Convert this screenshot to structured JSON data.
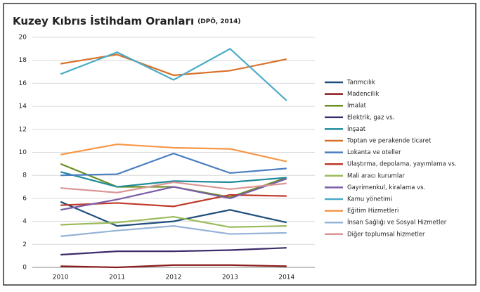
{
  "chart_data": {
    "type": "line",
    "title": "Kuzey Kıbrıs İstihdam Oranları",
    "subtitle": "(DPÖ, 2014)",
    "categories": [
      "2010",
      "2011",
      "2012",
      "2013",
      "2014"
    ],
    "ylim": [
      0,
      20
    ],
    "yticks": [
      0,
      2,
      4,
      6,
      8,
      10,
      12,
      14,
      16,
      18,
      20
    ],
    "grid": true,
    "legend": "right",
    "series": [
      {
        "name": "Tarımcılık",
        "color": "#1f4e79",
        "values": [
          5.7,
          3.6,
          4.0,
          5.0,
          3.9
        ]
      },
      {
        "name": "Madencilik",
        "color": "#8b1a1a",
        "values": [
          0.1,
          0.0,
          0.2,
          0.2,
          0.1
        ]
      },
      {
        "name": "İmalat",
        "color": "#6b8e23",
        "values": [
          9.0,
          7.0,
          7.0,
          6.1,
          7.8
        ]
      },
      {
        "name": "Elektrik, gaz vs.",
        "color": "#3d2b6b",
        "values": [
          1.1,
          1.4,
          1.4,
          1.5,
          1.7
        ]
      },
      {
        "name": "İnşaat",
        "color": "#1f8a9b",
        "values": [
          8.3,
          7.0,
          7.5,
          7.4,
          7.8
        ]
      },
      {
        "name": "Toptan ve perakende ticaret",
        "color": "#d9702a",
        "values": [
          17.7,
          18.5,
          16.7,
          17.1,
          18.1
        ]
      },
      {
        "name": "Lokanta ve oteller",
        "color": "#4a7ec2",
        "values": [
          8.0,
          8.1,
          9.9,
          8.2,
          8.6
        ]
      },
      {
        "name": "Ulaştırma,  depolama,  yayımlama  vs.",
        "color": "#c0392b",
        "values": [
          5.4,
          5.6,
          5.3,
          6.3,
          6.2
        ]
      },
      {
        "name": "Mali aracı kurumlar",
        "color": "#9bbb59",
        "values": [
          3.7,
          3.9,
          4.4,
          3.5,
          3.6
        ]
      },
      {
        "name": "Gayrimenkul, kiralama vs.",
        "color": "#7b5ea7",
        "values": [
          5.0,
          5.9,
          7.0,
          6.0,
          7.7
        ]
      },
      {
        "name": "Kamu yönetimi",
        "color": "#4bacc6",
        "values": [
          16.8,
          18.7,
          16.3,
          19.0,
          14.5
        ]
      },
      {
        "name": "Eğitim Hizmetleri",
        "color": "#f79646",
        "values": [
          9.8,
          10.7,
          10.4,
          10.3,
          9.2
        ]
      },
      {
        "name": "İnsan Sağlığı ve Sosyal Hizmetler",
        "color": "#95b3d7",
        "values": [
          2.7,
          3.2,
          3.6,
          2.9,
          3.0
        ]
      },
      {
        "name": "Diğer toplumsal  hizmetler",
        "color": "#d99694",
        "values": [
          6.9,
          6.5,
          7.4,
          6.8,
          7.3
        ]
      }
    ]
  }
}
